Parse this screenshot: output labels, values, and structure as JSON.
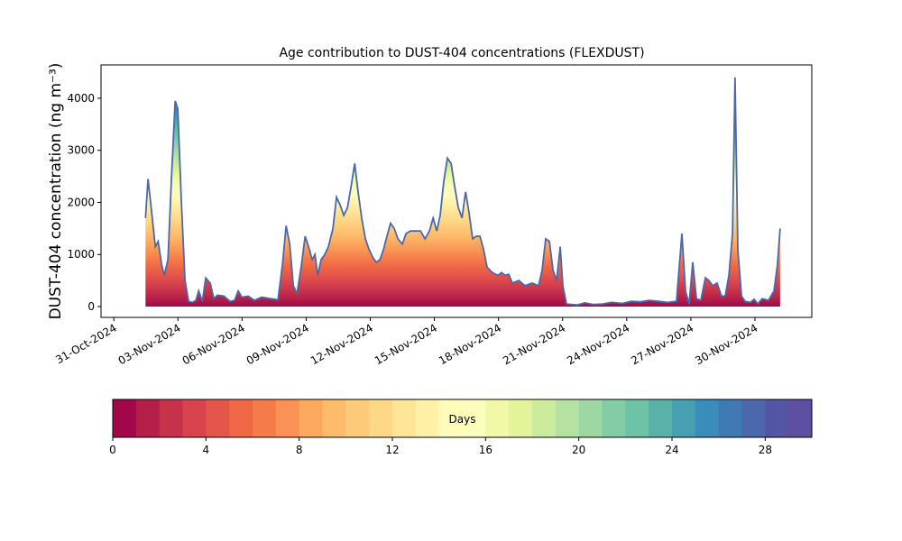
{
  "chart_data": {
    "type": "area",
    "title": "Age contribution to DUST-404 concentrations (FLEXDUST)",
    "y_label": "DUST-404 concentration (ng m⁻³)",
    "x": [
      1.48,
      1.6,
      1.77,
      1.94,
      2.07,
      2.24,
      2.36,
      2.53,
      2.7,
      2.87,
      2.99,
      3.16,
      3.33,
      3.5,
      3.67,
      3.84,
      3.97,
      4.14,
      4.3,
      4.51,
      4.68,
      4.85,
      5.15,
      5.44,
      5.65,
      5.82,
      5.99,
      6.29,
      6.58,
      6.92,
      7.34,
      7.68,
      7.89,
      8.06,
      8.23,
      8.4,
      8.57,
      8.78,
      8.95,
      9.11,
      9.28,
      9.41,
      9.54,
      9.7,
      9.87,
      10.04,
      10.25,
      10.42,
      10.59,
      10.76,
      10.93,
      11.1,
      11.27,
      11.43,
      11.6,
      11.77,
      11.94,
      12.11,
      12.28,
      12.45,
      12.62,
      12.78,
      12.95,
      13.12,
      13.29,
      13.5,
      13.67,
      13.88,
      14.09,
      14.35,
      14.56,
      14.77,
      14.94,
      15.11,
      15.27,
      15.44,
      15.61,
      15.78,
      15.95,
      16.12,
      16.29,
      16.46,
      16.62,
      16.79,
      16.96,
      17.13,
      17.3,
      17.47,
      17.72,
      17.97,
      18.14,
      18.31,
      18.48,
      18.65,
      18.95,
      19.24,
      19.58,
      19.87,
      20.04,
      20.21,
      20.38,
      20.55,
      20.72,
      20.89,
      21.01,
      21.18,
      21.69,
      22.03,
      22.45,
      22.87,
      23.29,
      23.8,
      24.22,
      24.64,
      25.06,
      25.49,
      25.91,
      26.33,
      26.58,
      26.75,
      26.92,
      27.09,
      27.26,
      27.47,
      27.68,
      27.85,
      28.02,
      28.23,
      28.44,
      28.61,
      28.78,
      28.95,
      29.07,
      29.2,
      29.37,
      29.54,
      29.79,
      29.96,
      30.13,
      30.34,
      30.63,
      30.89,
      31.05,
      31.18
    ],
    "series": [
      {
        "color": "#4b68ad",
        "values": [
          1700,
          2450,
          1800,
          1150,
          1250,
          800,
          600,
          900,
          2500,
          3950,
          3800,
          2000,
          500,
          100,
          80,
          120,
          300,
          100,
          550,
          450,
          150,
          220,
          200,
          100,
          120,
          300,
          180,
          200,
          120,
          180,
          150,
          130,
          800,
          1550,
          1200,
          400,
          250,
          800,
          1350,
          1150,
          900,
          1000,
          600,
          900,
          1000,
          1150,
          1500,
          2100,
          1950,
          1750,
          1900,
          2300,
          2750,
          2200,
          1700,
          1300,
          1100,
          950,
          850,
          900,
          1100,
          1350,
          1600,
          1500,
          1300,
          1200,
          1400,
          1450,
          1450,
          1450,
          1300,
          1450,
          1700,
          1450,
          1750,
          2400,
          2850,
          2750,
          2300,
          1900,
          1700,
          2200,
          1800,
          1300,
          1350,
          1350,
          1100,
          750,
          650,
          600,
          650,
          600,
          620,
          450,
          500,
          400,
          450,
          400,
          700,
          1300,
          1250,
          700,
          500,
          1150,
          400,
          50,
          30,
          70,
          40,
          50,
          80,
          60,
          100,
          90,
          120,
          100,
          80,
          100,
          1400,
          300,
          50,
          850,
          150,
          120,
          550,
          500,
          400,
          450,
          200,
          200,
          600,
          1400,
          4400,
          1100,
          200,
          100,
          80,
          140,
          50,
          150,
          120,
          300,
          800,
          1500
        ]
      }
    ],
    "xlim": [
      -0.6,
      32.66
    ],
    "xticks": [
      {
        "value": 0,
        "label": "31-Oct-2024"
      },
      {
        "value": 3,
        "label": "03-Nov-2024"
      },
      {
        "value": 6,
        "label": "06-Nov-2024"
      },
      {
        "value": 9,
        "label": "09-Nov-2024"
      },
      {
        "value": 12,
        "label": "12-Nov-2024"
      },
      {
        "value": 15,
        "label": "15-Nov-2024"
      },
      {
        "value": 18,
        "label": "18-Nov-2024"
      },
      {
        "value": 21,
        "label": "21-Nov-2024"
      },
      {
        "value": 24,
        "label": "24-Nov-2024"
      },
      {
        "value": 27,
        "label": "27-Nov-2024"
      },
      {
        "value": 30,
        "label": "30-Nov-2024"
      }
    ],
    "ylim": [
      -208,
      4640
    ],
    "yticks": [
      0,
      1000,
      2000,
      3000,
      4000
    ],
    "colorbar": {
      "label": "Days",
      "lim": [
        0,
        30
      ],
      "ticks": [
        0,
        4,
        8,
        12,
        16,
        20,
        24,
        28
      ],
      "colors": [
        "#a2074a",
        "#b41f48",
        "#c7324b",
        "#d8434d",
        "#e4564a",
        "#ef6744",
        "#f67b4a",
        "#f99254",
        "#fca85e",
        "#fdbb6c",
        "#fdca79",
        "#fed887",
        "#fee597",
        "#fef0a7",
        "#fffbb8",
        "#fbfdba",
        "#f1f9a9",
        "#e2f399",
        "#cceb9d",
        "#b5e1a1",
        "#9dd7a4",
        "#82cda5",
        "#6cc3a5",
        "#59b1aa",
        "#479fb2",
        "#3a8cbb",
        "#3f7ab5",
        "#4b68ad",
        "#5555a6",
        "#5e4fa2"
      ]
    }
  }
}
